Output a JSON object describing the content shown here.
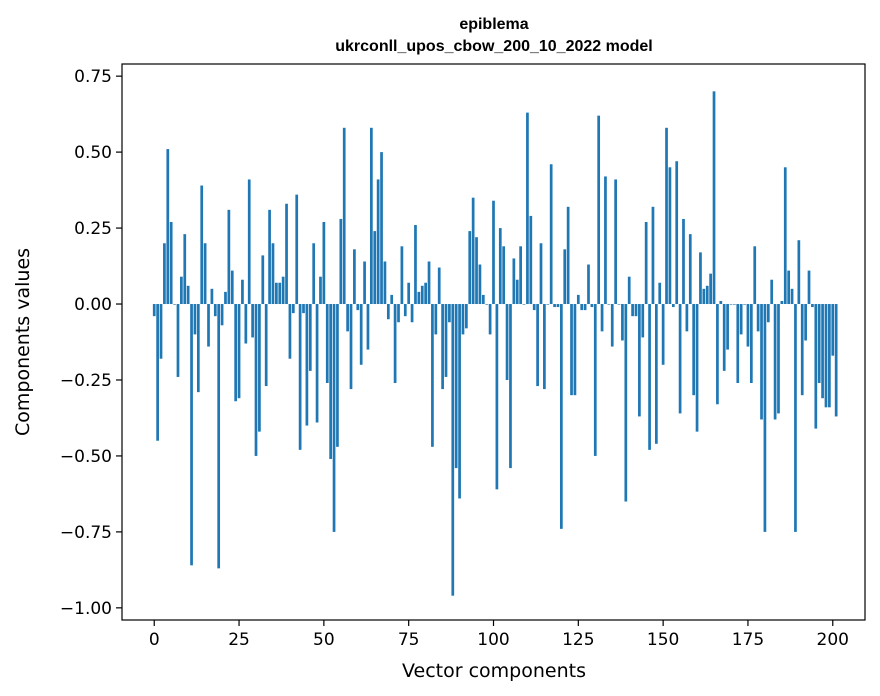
{
  "chart_data": {
    "type": "bar",
    "title": "epiblema",
    "subtitle": "ukrconll_upos_cbow_200_10_2022 model",
    "xlabel": "Vector components",
    "ylabel": "Components values",
    "xlim": [
      -9.5,
      209.5
    ],
    "ylim": [
      -1.04,
      0.79
    ],
    "xticks": [
      0,
      25,
      50,
      75,
      100,
      125,
      150,
      175,
      200
    ],
    "yticks": [
      -1.0,
      -0.75,
      -0.5,
      -0.25,
      0.0,
      0.25,
      0.5,
      0.75
    ],
    "ytick_labels": [
      "−1.00",
      "−0.75",
      "−0.50",
      "−0.25",
      "0.00",
      "0.25",
      "0.50",
      "0.75"
    ],
    "bar_color": "#1f77b4",
    "series": [
      {
        "name": "epiblema",
        "values": [
          -0.04,
          -0.45,
          -0.18,
          0.2,
          0.51,
          0.27,
          0.0,
          -0.24,
          0.09,
          0.23,
          0.06,
          -0.86,
          -0.1,
          -0.29,
          0.39,
          0.2,
          -0.14,
          0.05,
          -0.04,
          -0.87,
          -0.07,
          0.04,
          0.31,
          0.11,
          -0.32,
          -0.31,
          0.08,
          -0.13,
          0.41,
          -0.11,
          -0.5,
          -0.42,
          0.16,
          -0.27,
          0.31,
          0.2,
          0.07,
          0.07,
          0.09,
          0.33,
          -0.18,
          -0.03,
          0.36,
          -0.48,
          -0.03,
          -0.4,
          -0.22,
          0.2,
          -0.39,
          0.09,
          0.27,
          -0.26,
          -0.51,
          -0.75,
          -0.47,
          0.28,
          0.58,
          -0.09,
          -0.28,
          0.18,
          -0.02,
          -0.2,
          0.14,
          -0.15,
          0.58,
          0.24,
          0.41,
          0.5,
          0.14,
          -0.05,
          0.03,
          -0.26,
          -0.06,
          0.19,
          -0.04,
          0.07,
          -0.06,
          0.26,
          0.04,
          0.06,
          0.07,
          0.14,
          -0.47,
          -0.1,
          0.12,
          -0.28,
          -0.24,
          -0.06,
          -0.96,
          -0.54,
          -0.64,
          -0.1,
          -0.08,
          0.24,
          0.35,
          0.22,
          0.13,
          0.03,
          0.0,
          -0.1,
          0.34,
          -0.61,
          0.25,
          0.19,
          -0.25,
          -0.54,
          0.15,
          0.08,
          0.19,
          0.0,
          0.63,
          0.29,
          -0.02,
          -0.27,
          0.2,
          -0.28,
          0.0,
          0.46,
          -0.01,
          -0.01,
          -0.74,
          0.18,
          0.32,
          -0.3,
          -0.3,
          0.03,
          -0.02,
          -0.02,
          0.13,
          -0.01,
          -0.5,
          0.62,
          -0.09,
          0.42,
          0.0,
          -0.14,
          0.41,
          0.0,
          -0.12,
          -0.65,
          0.09,
          -0.04,
          -0.04,
          -0.37,
          -0.11,
          0.27,
          -0.48,
          0.32,
          -0.46,
          0.07,
          -0.2,
          0.58,
          0.45,
          -0.01,
          0.47,
          -0.36,
          0.28,
          -0.09,
          0.23,
          -0.3,
          -0.42,
          0.17,
          0.05,
          0.06,
          0.1,
          0.7,
          -0.33,
          0.01,
          -0.22,
          -0.15,
          0.0,
          0.0,
          -0.26,
          -0.1,
          0.0,
          -0.14,
          -0.26,
          0.19,
          -0.09,
          -0.38,
          -0.75,
          -0.06,
          0.08,
          -0.38,
          -0.36,
          0.01,
          0.45,
          0.11,
          0.05,
          -0.75,
          0.21,
          -0.3,
          -0.12,
          0.11,
          -0.01,
          -0.41,
          -0.26,
          -0.31,
          -0.34,
          -0.34,
          -0.17,
          -0.37
        ]
      }
    ]
  }
}
